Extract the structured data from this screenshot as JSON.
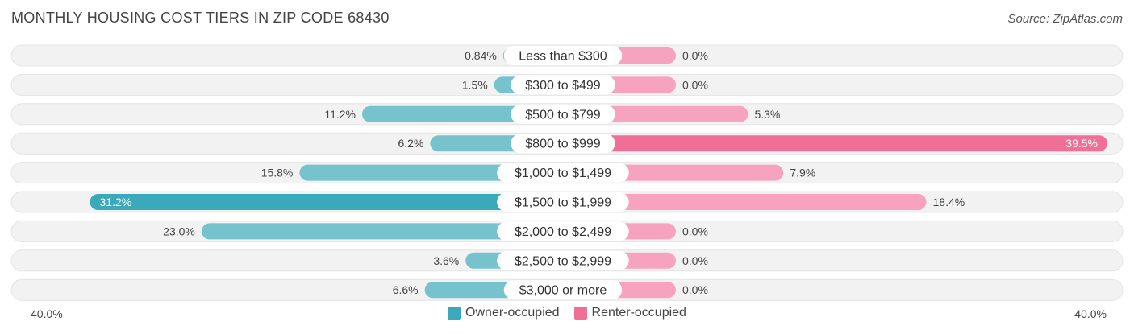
{
  "title": "MONTHLY HOUSING COST TIERS IN ZIP CODE 68430",
  "source": "Source: ZipAtlas.com",
  "colors": {
    "owner": "#76c3cd",
    "owner_strong": "#3aa9ba",
    "renter": "#f7a3bf",
    "renter_strong": "#ef6f96",
    "track": "#f0f0f0"
  },
  "chart_data": {
    "type": "bar",
    "orientation": "diverging-horizontal",
    "categories": [
      "Less than $300",
      "$300 to $499",
      "$500 to $799",
      "$800 to $999",
      "$1,000 to $1,499",
      "$1,500 to $1,999",
      "$2,000 to $2,499",
      "$2,500 to $2,999",
      "$3,000 or more"
    ],
    "series": [
      {
        "name": "Owner-occupied",
        "values": [
          0.84,
          1.5,
          11.2,
          6.2,
          15.8,
          31.2,
          23.0,
          3.6,
          6.6
        ],
        "labels": [
          "0.84%",
          "1.5%",
          "11.2%",
          "6.2%",
          "15.8%",
          "31.2%",
          "23.0%",
          "3.6%",
          "6.6%"
        ]
      },
      {
        "name": "Renter-occupied",
        "values": [
          0.0,
          0.0,
          5.3,
          39.5,
          7.9,
          18.4,
          0.0,
          0.0,
          0.0
        ],
        "labels": [
          "0.0%",
          "0.0%",
          "5.3%",
          "39.5%",
          "7.9%",
          "18.4%",
          "0.0%",
          "0.0%",
          "0.0%"
        ]
      }
    ],
    "xlim": [
      -40,
      40
    ],
    "axis_min_label": "40.0%",
    "axis_max_label": "40.0%",
    "legend_position": "bottom-center"
  }
}
